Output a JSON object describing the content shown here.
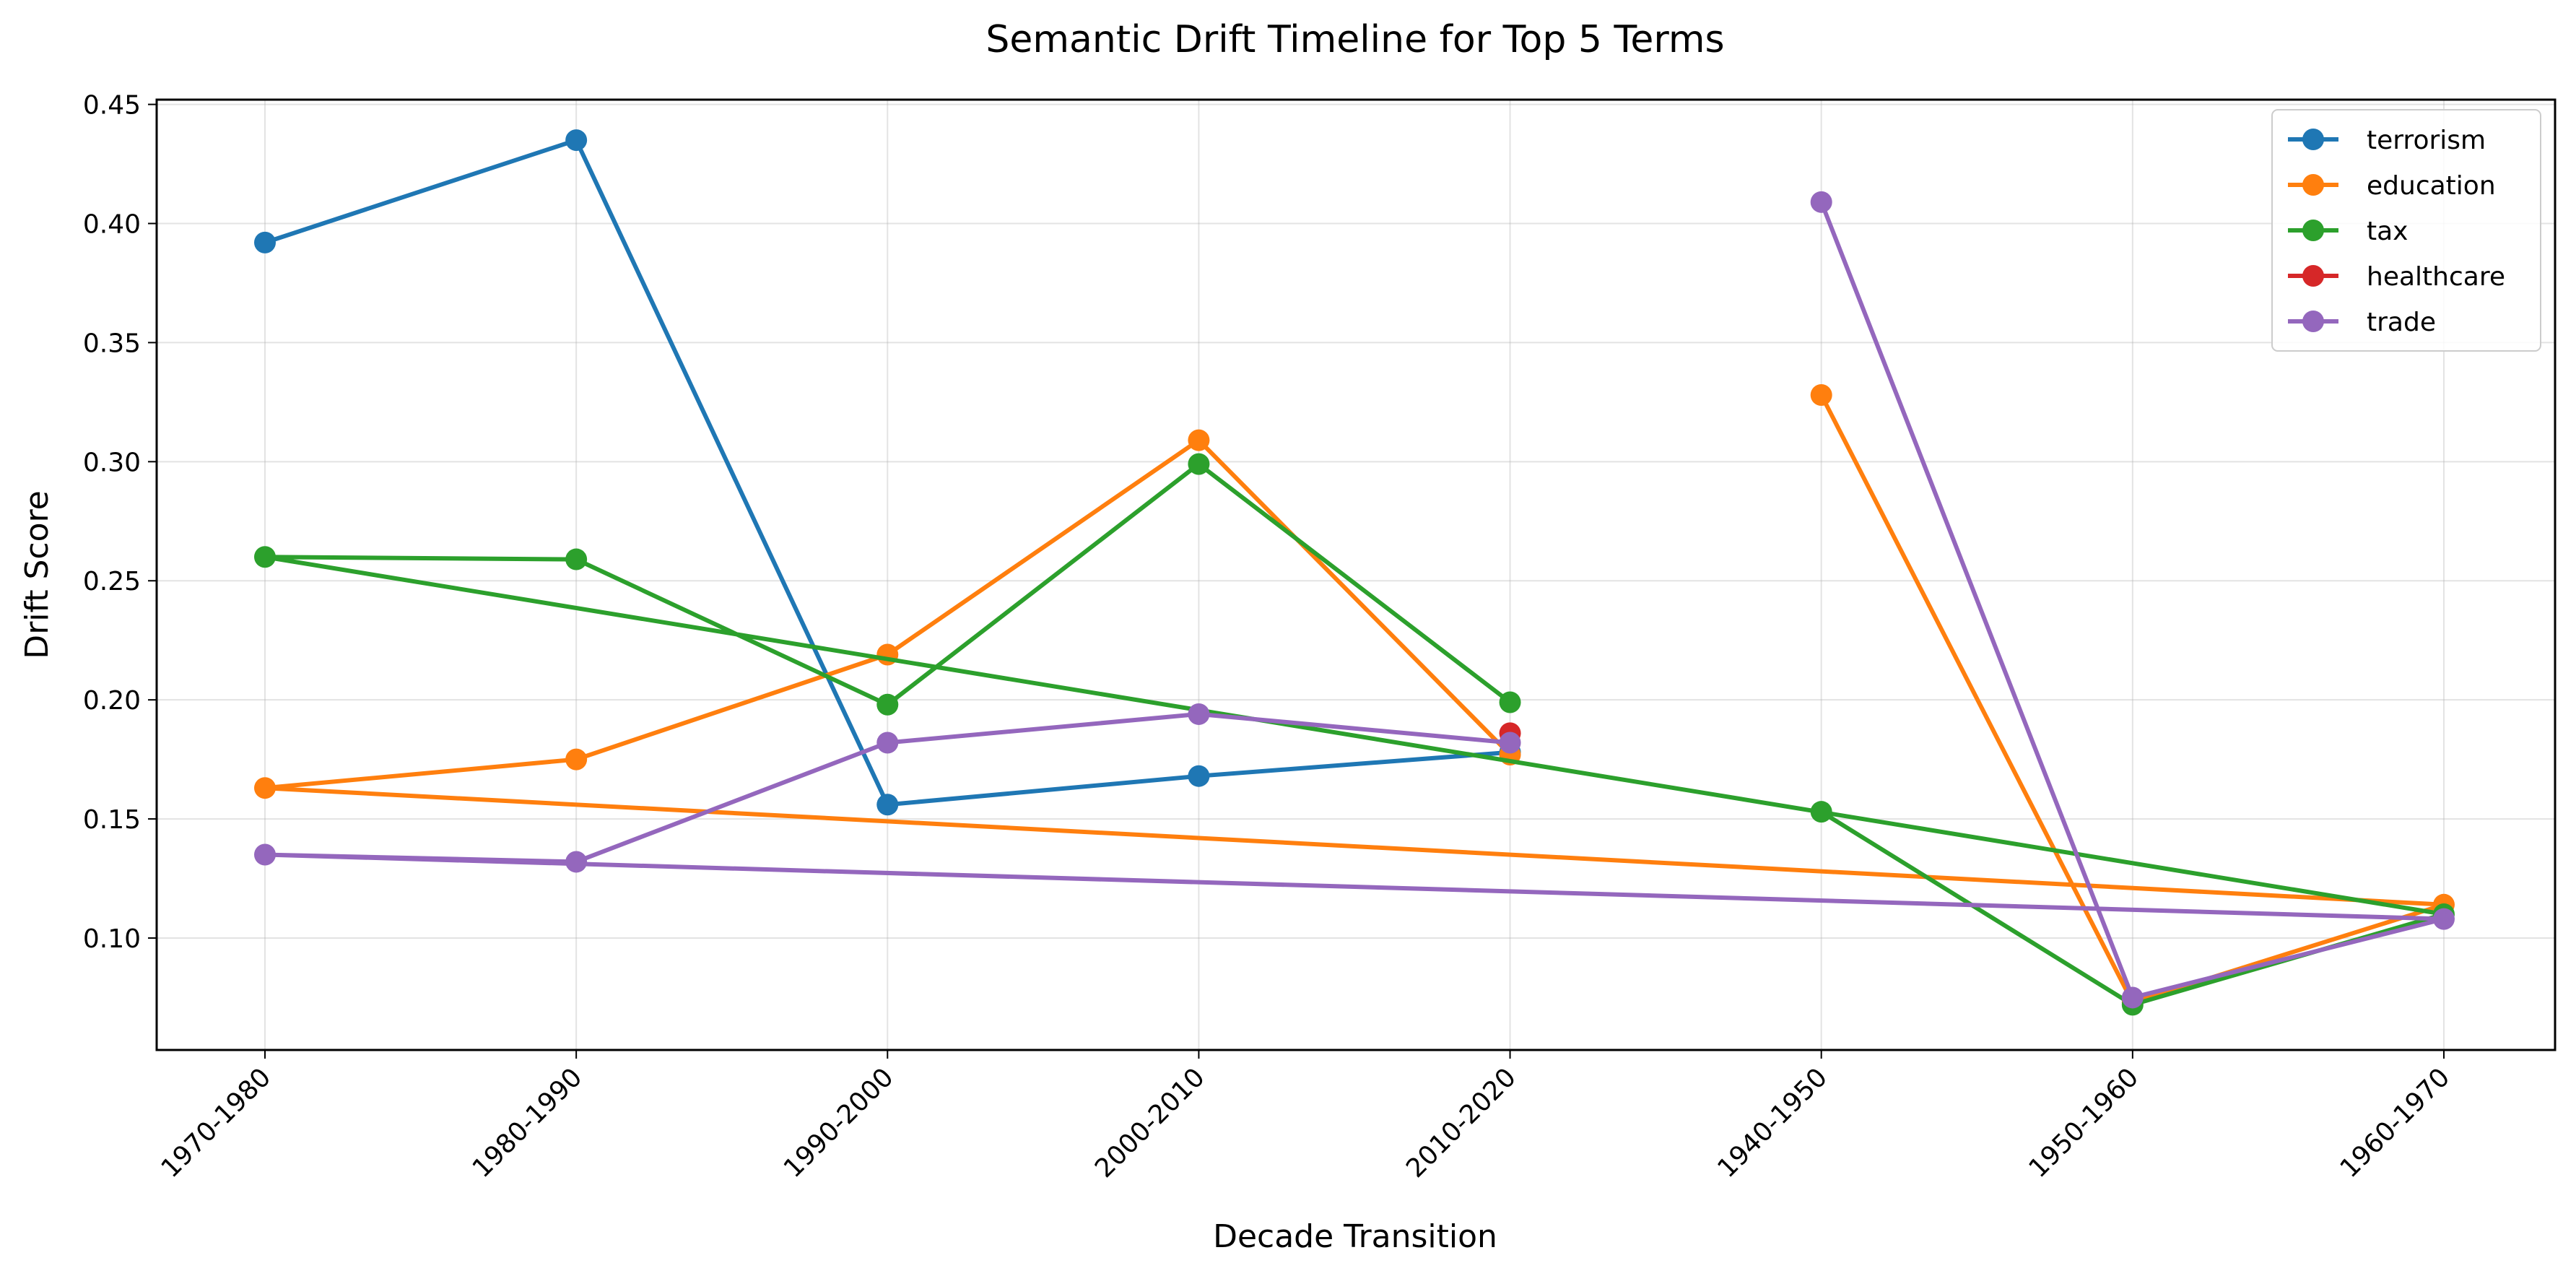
{
  "chart_data": {
    "type": "line",
    "title": "Semantic Drift Timeline for Top 5 Terms",
    "xlabel": "Decade Transition",
    "ylabel": "Drift Score",
    "categories": [
      "1970-1980",
      "1980-1990",
      "1990-2000",
      "2000-2010",
      "2010-2020",
      "1940-1950",
      "1950-1960",
      "1960-1970"
    ],
    "ylim": [
      0.053,
      0.452
    ],
    "yticks": [
      "0.10",
      "0.15",
      "0.20",
      "0.25",
      "0.30",
      "0.35",
      "0.40",
      "0.45"
    ],
    "grid": true,
    "legend_position": "top-right",
    "series": [
      {
        "name": "terrorism",
        "color": "#1f77b4",
        "points": [
          {
            "x": "1970-1980",
            "y": 0.392
          },
          {
            "x": "1980-1990",
            "y": 0.435
          },
          {
            "x": "1990-2000",
            "y": 0.156
          },
          {
            "x": "2000-2010",
            "y": 0.168
          },
          {
            "x": "2010-2020",
            "y": 0.178
          }
        ]
      },
      {
        "name": "education",
        "color": "#ff7f0e",
        "points": [
          {
            "x": "1940-1950",
            "y": 0.328
          },
          {
            "x": "1950-1960",
            "y": 0.073
          },
          {
            "x": "1960-1970",
            "y": 0.114
          },
          {
            "x": "1970-1980",
            "y": 0.163
          },
          {
            "x": "1980-1990",
            "y": 0.175
          },
          {
            "x": "1990-2000",
            "y": 0.219
          },
          {
            "x": "2000-2010",
            "y": 0.309
          },
          {
            "x": "2010-2020",
            "y": 0.177
          }
        ]
      },
      {
        "name": "tax",
        "color": "#2ca02c",
        "points": [
          {
            "x": "1940-1950",
            "y": 0.153
          },
          {
            "x": "1950-1960",
            "y": 0.072
          },
          {
            "x": "1960-1970",
            "y": 0.11
          },
          {
            "x": "1970-1980",
            "y": 0.26
          },
          {
            "x": "1980-1990",
            "y": 0.259
          },
          {
            "x": "1990-2000",
            "y": 0.198
          },
          {
            "x": "2000-2010",
            "y": 0.299
          },
          {
            "x": "2010-2020",
            "y": 0.199
          }
        ]
      },
      {
        "name": "healthcare",
        "color": "#d62728",
        "points": [
          {
            "x": "2010-2020",
            "y": 0.186
          }
        ]
      },
      {
        "name": "trade",
        "color": "#9467bd",
        "points": [
          {
            "x": "1940-1950",
            "y": 0.409
          },
          {
            "x": "1950-1960",
            "y": 0.075
          },
          {
            "x": "1960-1970",
            "y": 0.108
          },
          {
            "x": "1970-1980",
            "y": 0.135
          },
          {
            "x": "1980-1990",
            "y": 0.132
          },
          {
            "x": "1990-2000",
            "y": 0.182
          },
          {
            "x": "2000-2010",
            "y": 0.194
          },
          {
            "x": "2010-2020",
            "y": 0.182
          }
        ]
      }
    ]
  }
}
